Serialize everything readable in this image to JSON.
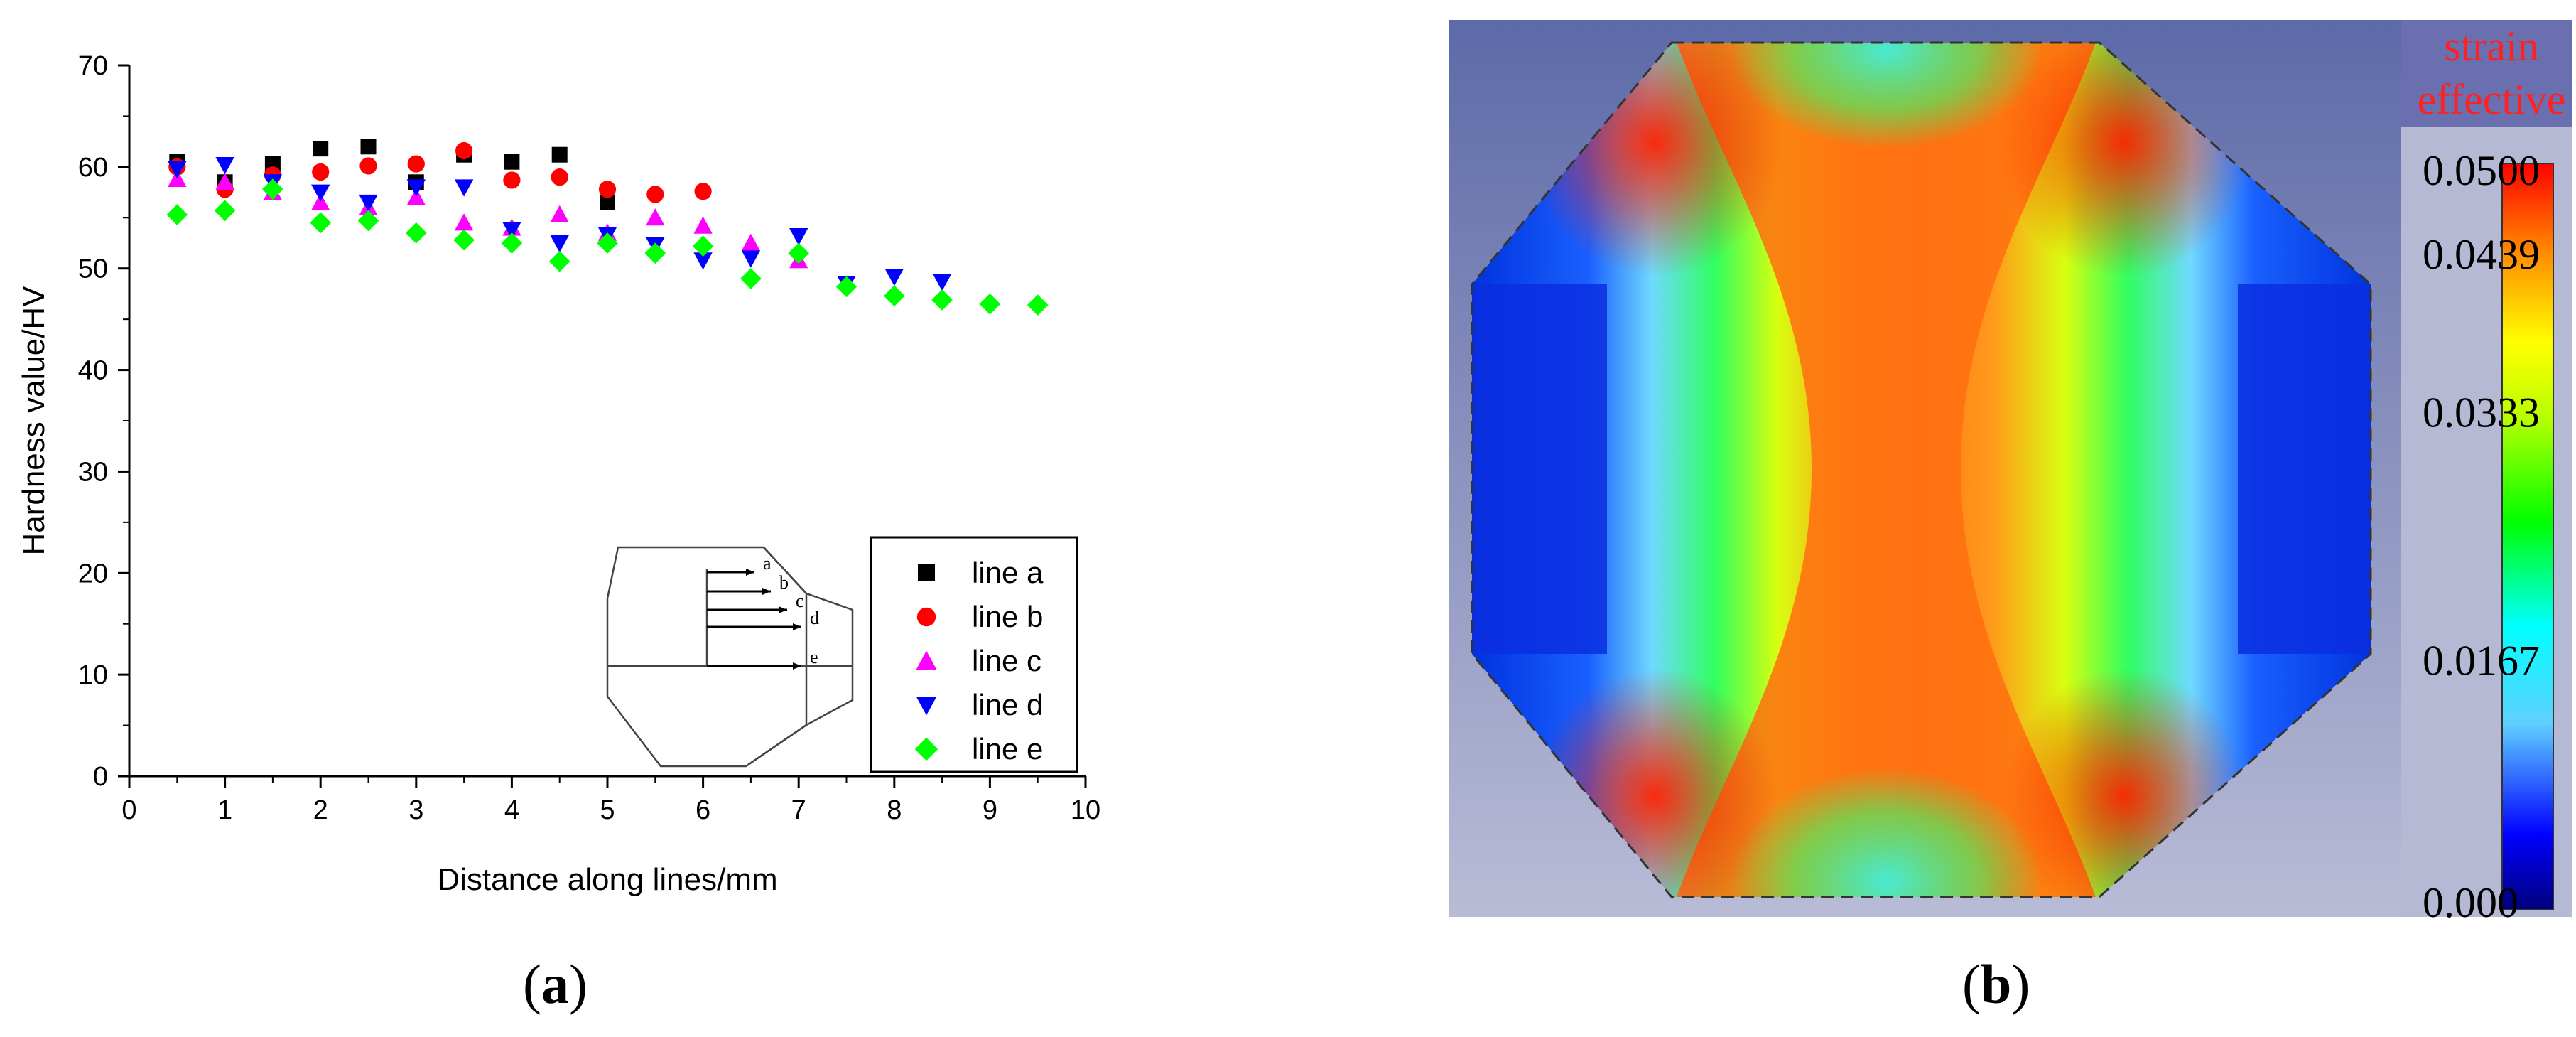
{
  "panels": {
    "a_label": "a",
    "b_label": "b"
  },
  "chart_data": [
    {
      "type": "scatter",
      "title": "",
      "xlabel": "Distance along lines/mm",
      "ylabel": "Hardness value/HV",
      "xlim": [
        0,
        10
      ],
      "ylim": [
        0,
        70
      ],
      "xticks": [
        0,
        1,
        2,
        3,
        4,
        5,
        6,
        7,
        8,
        9,
        10
      ],
      "yticks": [
        0,
        10,
        20,
        30,
        40,
        50,
        60,
        70
      ],
      "grid": false,
      "legend_position": "bottom-right",
      "series": [
        {
          "name": "line a",
          "marker": "square",
          "color": "#000000",
          "x": [
            0.5,
            1,
            1.5,
            2,
            2.5,
            3,
            3.5,
            4,
            4.5,
            5
          ],
          "y": [
            60.5,
            58.5,
            60.3,
            61.8,
            62.0,
            58.5,
            61.2,
            60.5,
            61.2,
            56.5
          ]
        },
        {
          "name": "line b",
          "marker": "circle",
          "color": "#ff0000",
          "x": [
            0.5,
            1,
            1.5,
            2,
            2.5,
            3,
            3.5,
            4,
            4.5,
            5,
            5.5,
            6
          ],
          "y": [
            60.0,
            57.8,
            59.2,
            59.5,
            60.1,
            60.3,
            61.6,
            58.7,
            59.0,
            57.8,
            57.3,
            57.6
          ]
        },
        {
          "name": "line c",
          "marker": "triangle-up",
          "color": "#ff00ff",
          "x": [
            0.5,
            1,
            1.5,
            2,
            2.5,
            3,
            3.5,
            4,
            4.5,
            5,
            5.5,
            6,
            6.5,
            7
          ],
          "y": [
            58.8,
            58.5,
            57.5,
            56.5,
            56.0,
            57.0,
            54.5,
            54.0,
            55.3,
            53.5,
            55.0,
            54.2,
            52.5,
            50.8
          ]
        },
        {
          "name": "line d",
          "marker": "triangle-down",
          "color": "#0000ff",
          "x": [
            0.5,
            1,
            1.5,
            2,
            2.5,
            3,
            3.5,
            4,
            4.5,
            5,
            5.5,
            6,
            6.5,
            7,
            7.5,
            8,
            8.5
          ],
          "y": [
            59.8,
            60.2,
            58.5,
            57.5,
            56.5,
            58.0,
            58.0,
            53.8,
            52.5,
            53.3,
            52.3,
            50.8,
            51.0,
            53.2,
            48.5,
            49.2,
            48.7
          ]
        },
        {
          "name": "line e",
          "marker": "diamond",
          "color": "#00ff00",
          "x": [
            0.5,
            1,
            1.5,
            2,
            2.5,
            3,
            3.5,
            4,
            4.5,
            5,
            5.5,
            6,
            6.5,
            7,
            7.5,
            8,
            8.5,
            9,
            9.5
          ],
          "y": [
            55.3,
            55.7,
            57.8,
            54.5,
            54.7,
            53.5,
            52.8,
            52.5,
            50.7,
            52.5,
            51.5,
            52.2,
            49.0,
            51.5,
            48.2,
            47.3,
            46.9,
            46.5,
            46.4
          ]
        }
      ],
      "inset_labels": [
        "a",
        "b",
        "c",
        "d",
        "e"
      ]
    },
    {
      "type": "heatmap",
      "title_lines": [
        "strain",
        "effective"
      ],
      "colorbar": {
        "ticks": [
          "0.0500",
          "0.0439",
          "0.0333",
          "0.0167",
          "0.000"
        ],
        "tick_values": [
          0.05,
          0.0439,
          0.0333,
          0.0167,
          0.0
        ],
        "range": [
          0.0,
          0.05
        ],
        "colormap": "rainbow"
      },
      "title_color": "#ff2020",
      "background": "#a9acc9"
    }
  ]
}
